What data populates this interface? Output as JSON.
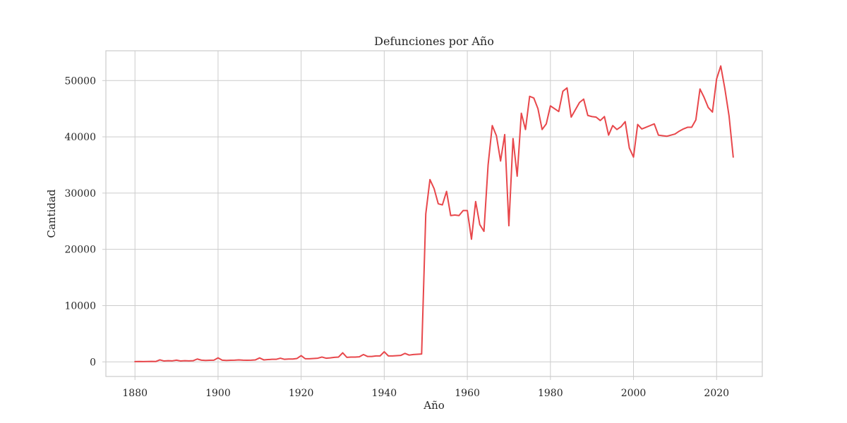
{
  "chart_data": {
    "type": "line",
    "title": "Defunciones por Año",
    "xlabel": "Año",
    "ylabel": "Cantidad",
    "xlim": [
      1873,
      2031
    ],
    "ylim": [
      -2600,
      55300
    ],
    "x_ticks": [
      1880,
      1900,
      1920,
      1940,
      1960,
      1980,
      2000,
      2020
    ],
    "y_ticks": [
      0,
      10000,
      20000,
      30000,
      40000,
      50000
    ],
    "grid": true,
    "legend": "none",
    "colors": {
      "line": "#e8474b",
      "grid": "#cccccc",
      "frame": "#cccccc",
      "text": "#262626"
    },
    "series": [
      {
        "x": [
          1880,
          1881,
          1882,
          1883,
          1884,
          1885,
          1886,
          1887,
          1888,
          1889,
          1890,
          1891,
          1892,
          1893,
          1894,
          1895,
          1896,
          1897,
          1898,
          1899,
          1900,
          1901,
          1902,
          1903,
          1904,
          1905,
          1906,
          1907,
          1908,
          1909,
          1910,
          1911,
          1912,
          1913,
          1914,
          1915,
          1916,
          1917,
          1918,
          1919,
          1920,
          1921,
          1922,
          1923,
          1924,
          1925,
          1926,
          1927,
          1928,
          1929,
          1930,
          1931,
          1932,
          1933,
          1934,
          1935,
          1936,
          1937,
          1938,
          1939,
          1940,
          1941,
          1942,
          1943,
          1944,
          1945,
          1946,
          1947,
          1948,
          1949,
          1950,
          1951,
          1952,
          1953,
          1954,
          1955,
          1956,
          1957,
          1958,
          1959,
          1960,
          1961,
          1962,
          1963,
          1964,
          1965,
          1966,
          1967,
          1968,
          1969,
          1970,
          1971,
          1972,
          1973,
          1974,
          1975,
          1976,
          1977,
          1978,
          1979,
          1980,
          1981,
          1982,
          1983,
          1984,
          1985,
          1986,
          1987,
          1988,
          1989,
          1990,
          1991,
          1992,
          1993,
          1994,
          1995,
          1996,
          1997,
          1998,
          1999,
          2000,
          2001,
          2002,
          2003,
          2004,
          2005,
          2006,
          2007,
          2008,
          2009,
          2010,
          2011,
          2012,
          2013,
          2014,
          2015,
          2016,
          2017,
          2018,
          2019,
          2020,
          2021,
          2022,
          2023,
          2024
        ],
        "values": [
          50,
          60,
          40,
          70,
          80,
          60,
          350,
          150,
          200,
          180,
          300,
          150,
          200,
          180,
          200,
          500,
          300,
          250,
          280,
          300,
          700,
          300,
          250,
          280,
          300,
          350,
          300,
          280,
          300,
          350,
          700,
          350,
          400,
          450,
          450,
          650,
          450,
          500,
          500,
          600,
          1100,
          550,
          550,
          600,
          650,
          850,
          650,
          700,
          800,
          850,
          1600,
          800,
          850,
          850,
          900,
          1300,
          950,
          950,
          1050,
          1050,
          1800,
          1050,
          1050,
          1100,
          1150,
          1500,
          1200,
          1300,
          1350,
          1400,
          26300,
          32400,
          30800,
          28100,
          27900,
          30300,
          26000,
          26100,
          26000,
          26900,
          26900,
          21800,
          28500,
          24400,
          23200,
          35000,
          42000,
          40200,
          35700,
          40400,
          24200,
          39700,
          33000,
          44200,
          41300,
          47200,
          46900,
          45000,
          41300,
          42300,
          45500,
          45000,
          44500,
          48100,
          48700,
          43500,
          44800,
          46100,
          46700,
          43800,
          43600,
          43500,
          42900,
          43600,
          40300,
          42000,
          41300,
          41800,
          42700,
          38000,
          36400,
          42200,
          41400,
          41700,
          42000,
          42300,
          40300,
          40200,
          40100,
          40300,
          40500,
          41000,
          41400,
          41700,
          41700,
          43000,
          48500,
          47000,
          45200,
          44400,
          50300,
          52600,
          48500,
          43700,
          36400
        ]
      }
    ]
  }
}
